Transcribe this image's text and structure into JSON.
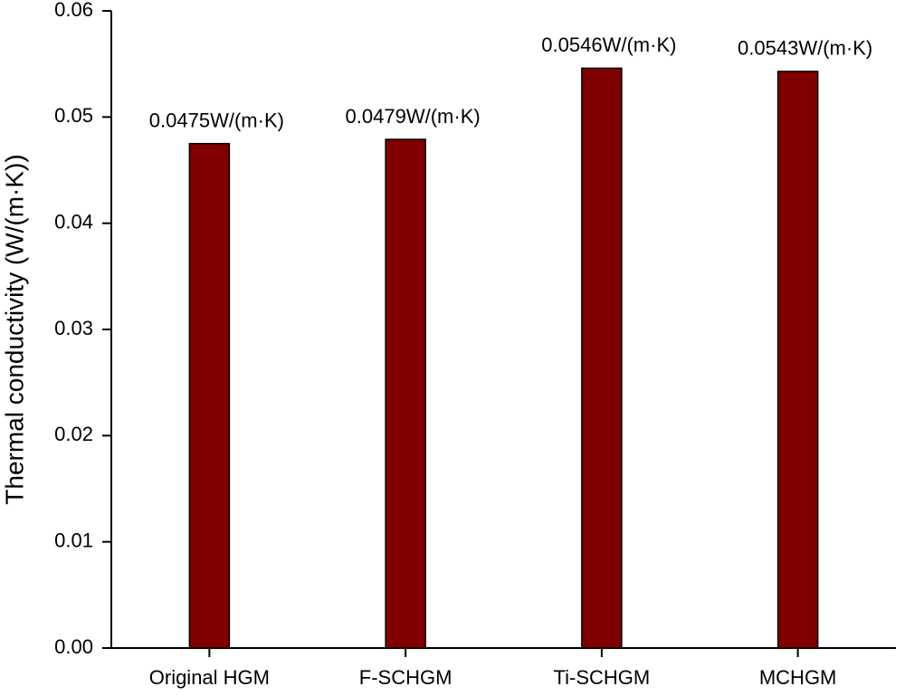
{
  "chart_data": {
    "type": "bar",
    "y_label": "Thermal conductivity (W/(m·K))",
    "categories": [
      "Original HGM",
      "F-SCHGM",
      "Ti-SCHGM",
      "MCHGM"
    ],
    "values": [
      0.0475,
      0.0479,
      0.0546,
      0.0543
    ],
    "value_labels": [
      "0.0475W/(m·K)",
      "0.0479W/(m·K)",
      "0.0546W/(m·K)",
      "0.0543W/(m·K)"
    ],
    "color": "#800000",
    "ylim": [
      0,
      0.06
    ],
    "yticks": [
      {
        "value": 0,
        "label": "0.00"
      },
      0.01,
      0.02,
      0.03,
      0.04,
      0.05,
      0.06
    ],
    "grid": false
  }
}
